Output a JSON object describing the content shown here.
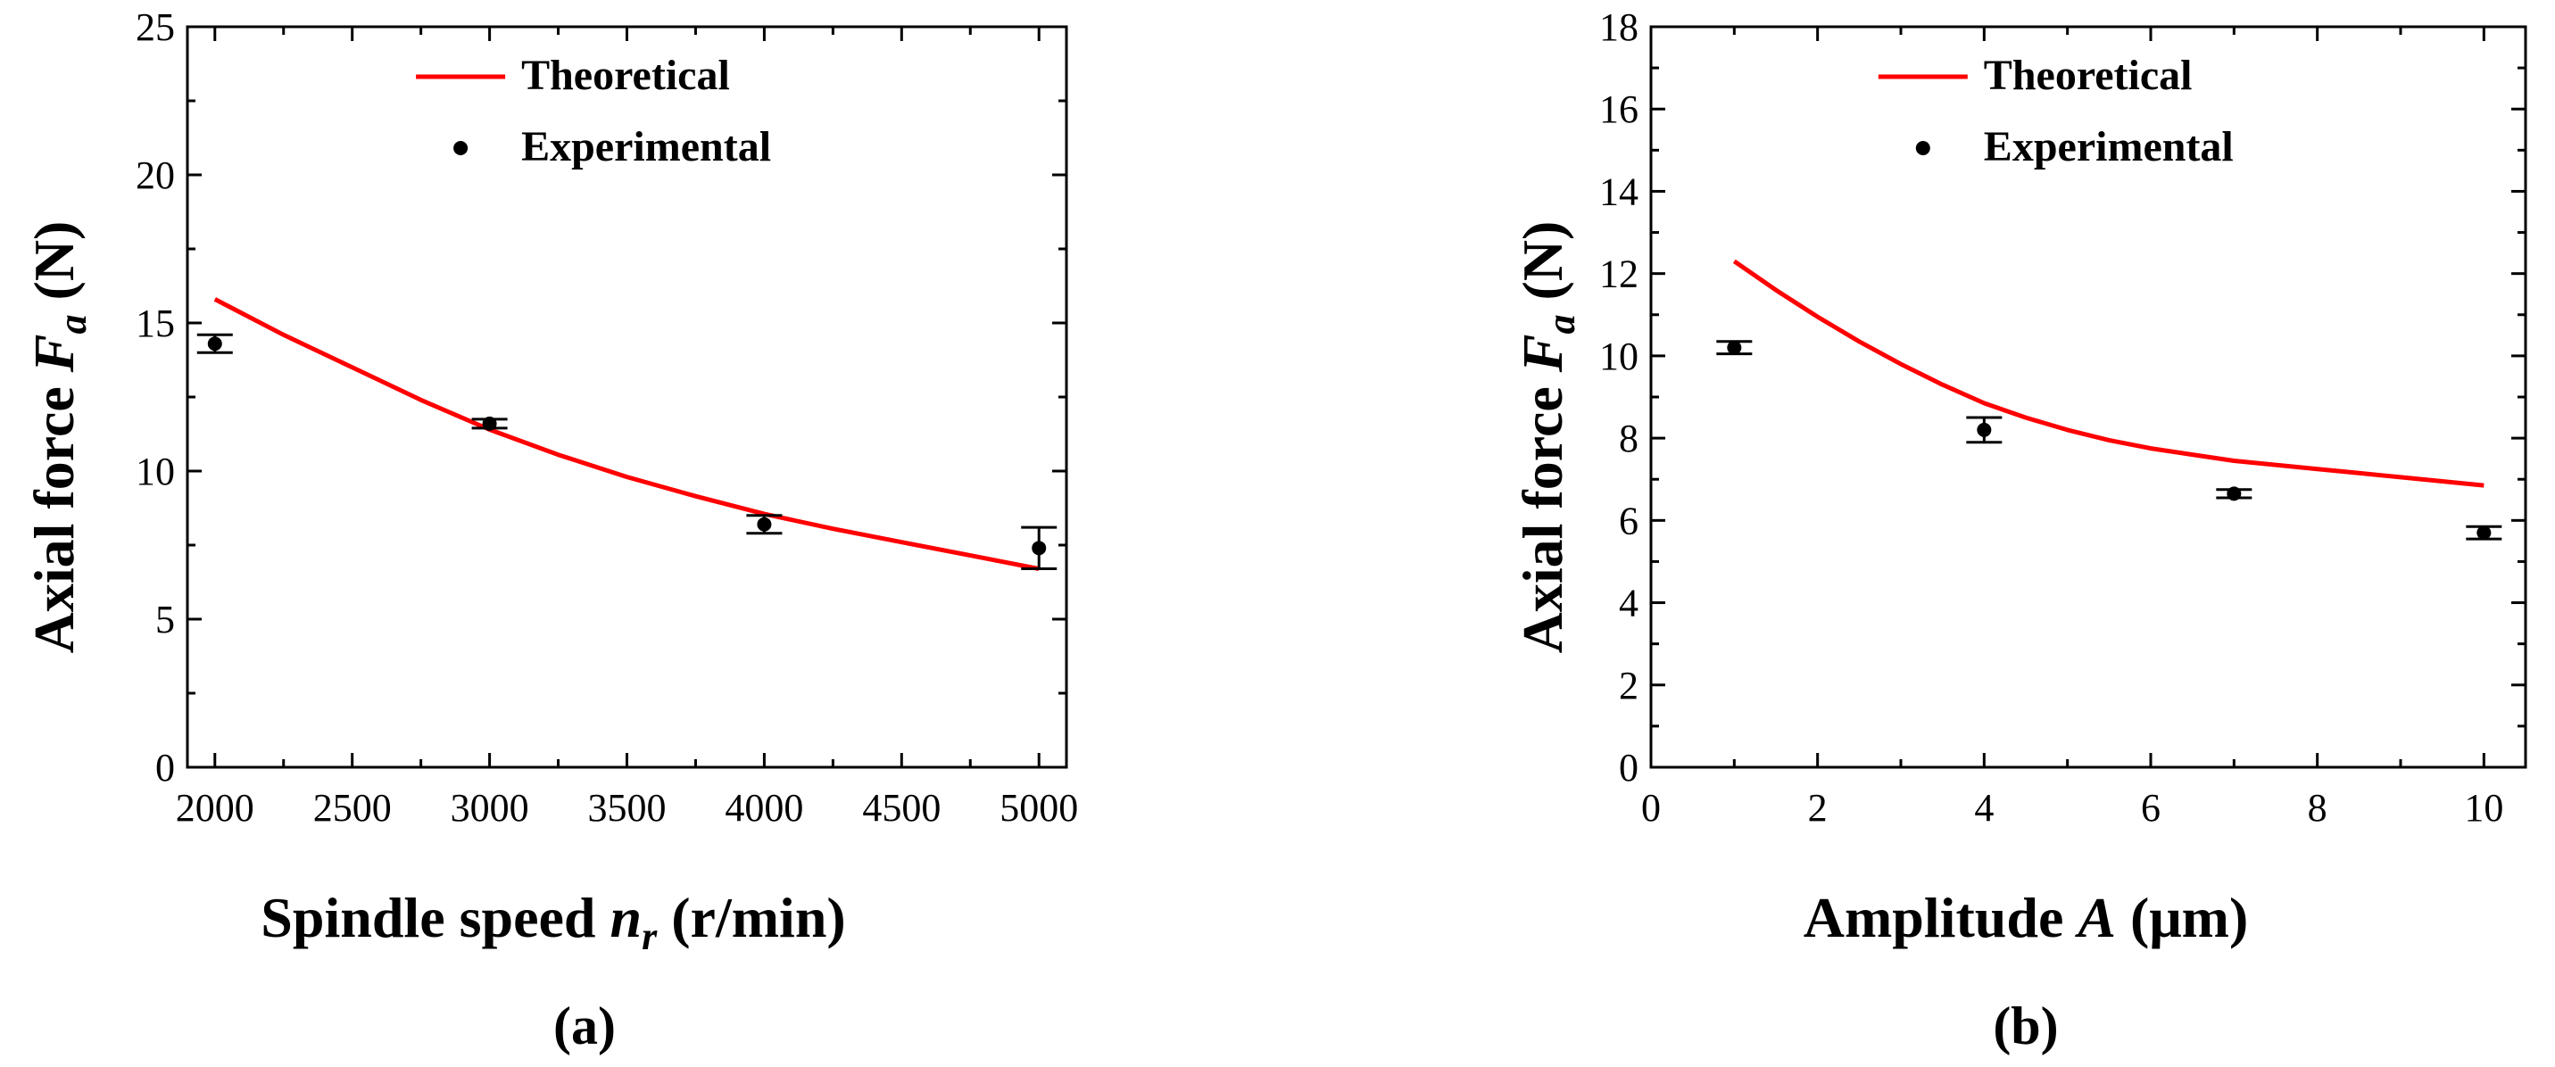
{
  "chart_data": [
    {
      "type": "line",
      "panel_label": "(a)",
      "xlabel": {
        "main": "Spindle speed ",
        "var": "n",
        "sub": "r",
        "unit": " (r/min)"
      },
      "ylabel": {
        "main": "Axial force ",
        "var": "F",
        "sub": "a",
        "unit": "  (N)"
      },
      "xlim": [
        1900,
        5100
      ],
      "ylim": [
        0,
        25
      ],
      "xticks": [
        2000,
        2500,
        3000,
        3500,
        4000,
        4500,
        5000
      ],
      "yticks": [
        0,
        5,
        10,
        15,
        20,
        25
      ],
      "legend": {
        "position": "top-right",
        "theoretical": "Theoretical",
        "experimental": "Experimental"
      },
      "theoretical": {
        "color": "#ff0000",
        "x": [
          2000,
          2250,
          2500,
          2750,
          3000,
          3250,
          3500,
          3750,
          4000,
          4250,
          4500,
          4750,
          5000
        ],
        "y": [
          15.8,
          14.6,
          13.5,
          12.4,
          11.4,
          10.55,
          9.8,
          9.15,
          8.55,
          8.05,
          7.6,
          7.15,
          6.7
        ]
      },
      "experimental": {
        "x": [
          2000,
          3000,
          4000,
          5000
        ],
        "y": [
          14.3,
          11.6,
          8.2,
          7.4
        ],
        "err": [
          0.3,
          0.15,
          0.3,
          0.7
        ]
      }
    },
    {
      "type": "line",
      "panel_label": "(b)",
      "xlabel": {
        "main": "Amplitude ",
        "var": "A",
        "sub": "",
        "unit": " (μm)"
      },
      "ylabel": {
        "main": "Axial force ",
        "var": "F",
        "sub": "a",
        "unit": "  (N)"
      },
      "xlim": [
        0,
        10.5
      ],
      "ylim": [
        0,
        18
      ],
      "xticks": [
        0,
        2,
        4,
        6,
        8,
        10
      ],
      "yticks": [
        0,
        2,
        4,
        6,
        8,
        10,
        12,
        14,
        16,
        18
      ],
      "legend": {
        "position": "top-right",
        "theoretical": "Theoretical",
        "experimental": "Experimental"
      },
      "theoretical": {
        "color": "#ff0000",
        "x": [
          1,
          1.5,
          2,
          2.5,
          3,
          3.5,
          4,
          4.5,
          5,
          5.5,
          6,
          6.5,
          7,
          7.5,
          8,
          8.5,
          9,
          9.5,
          10
        ],
        "y": [
          12.3,
          11.6,
          10.95,
          10.35,
          9.8,
          9.3,
          8.85,
          8.5,
          8.2,
          7.95,
          7.75,
          7.6,
          7.45,
          7.35,
          7.25,
          7.15,
          7.05,
          6.95,
          6.85
        ]
      },
      "experimental": {
        "x": [
          1,
          4,
          7,
          10
        ],
        "y": [
          10.2,
          8.2,
          6.65,
          5.7
        ],
        "err": [
          0.15,
          0.3,
          0.1,
          0.15
        ]
      }
    }
  ]
}
